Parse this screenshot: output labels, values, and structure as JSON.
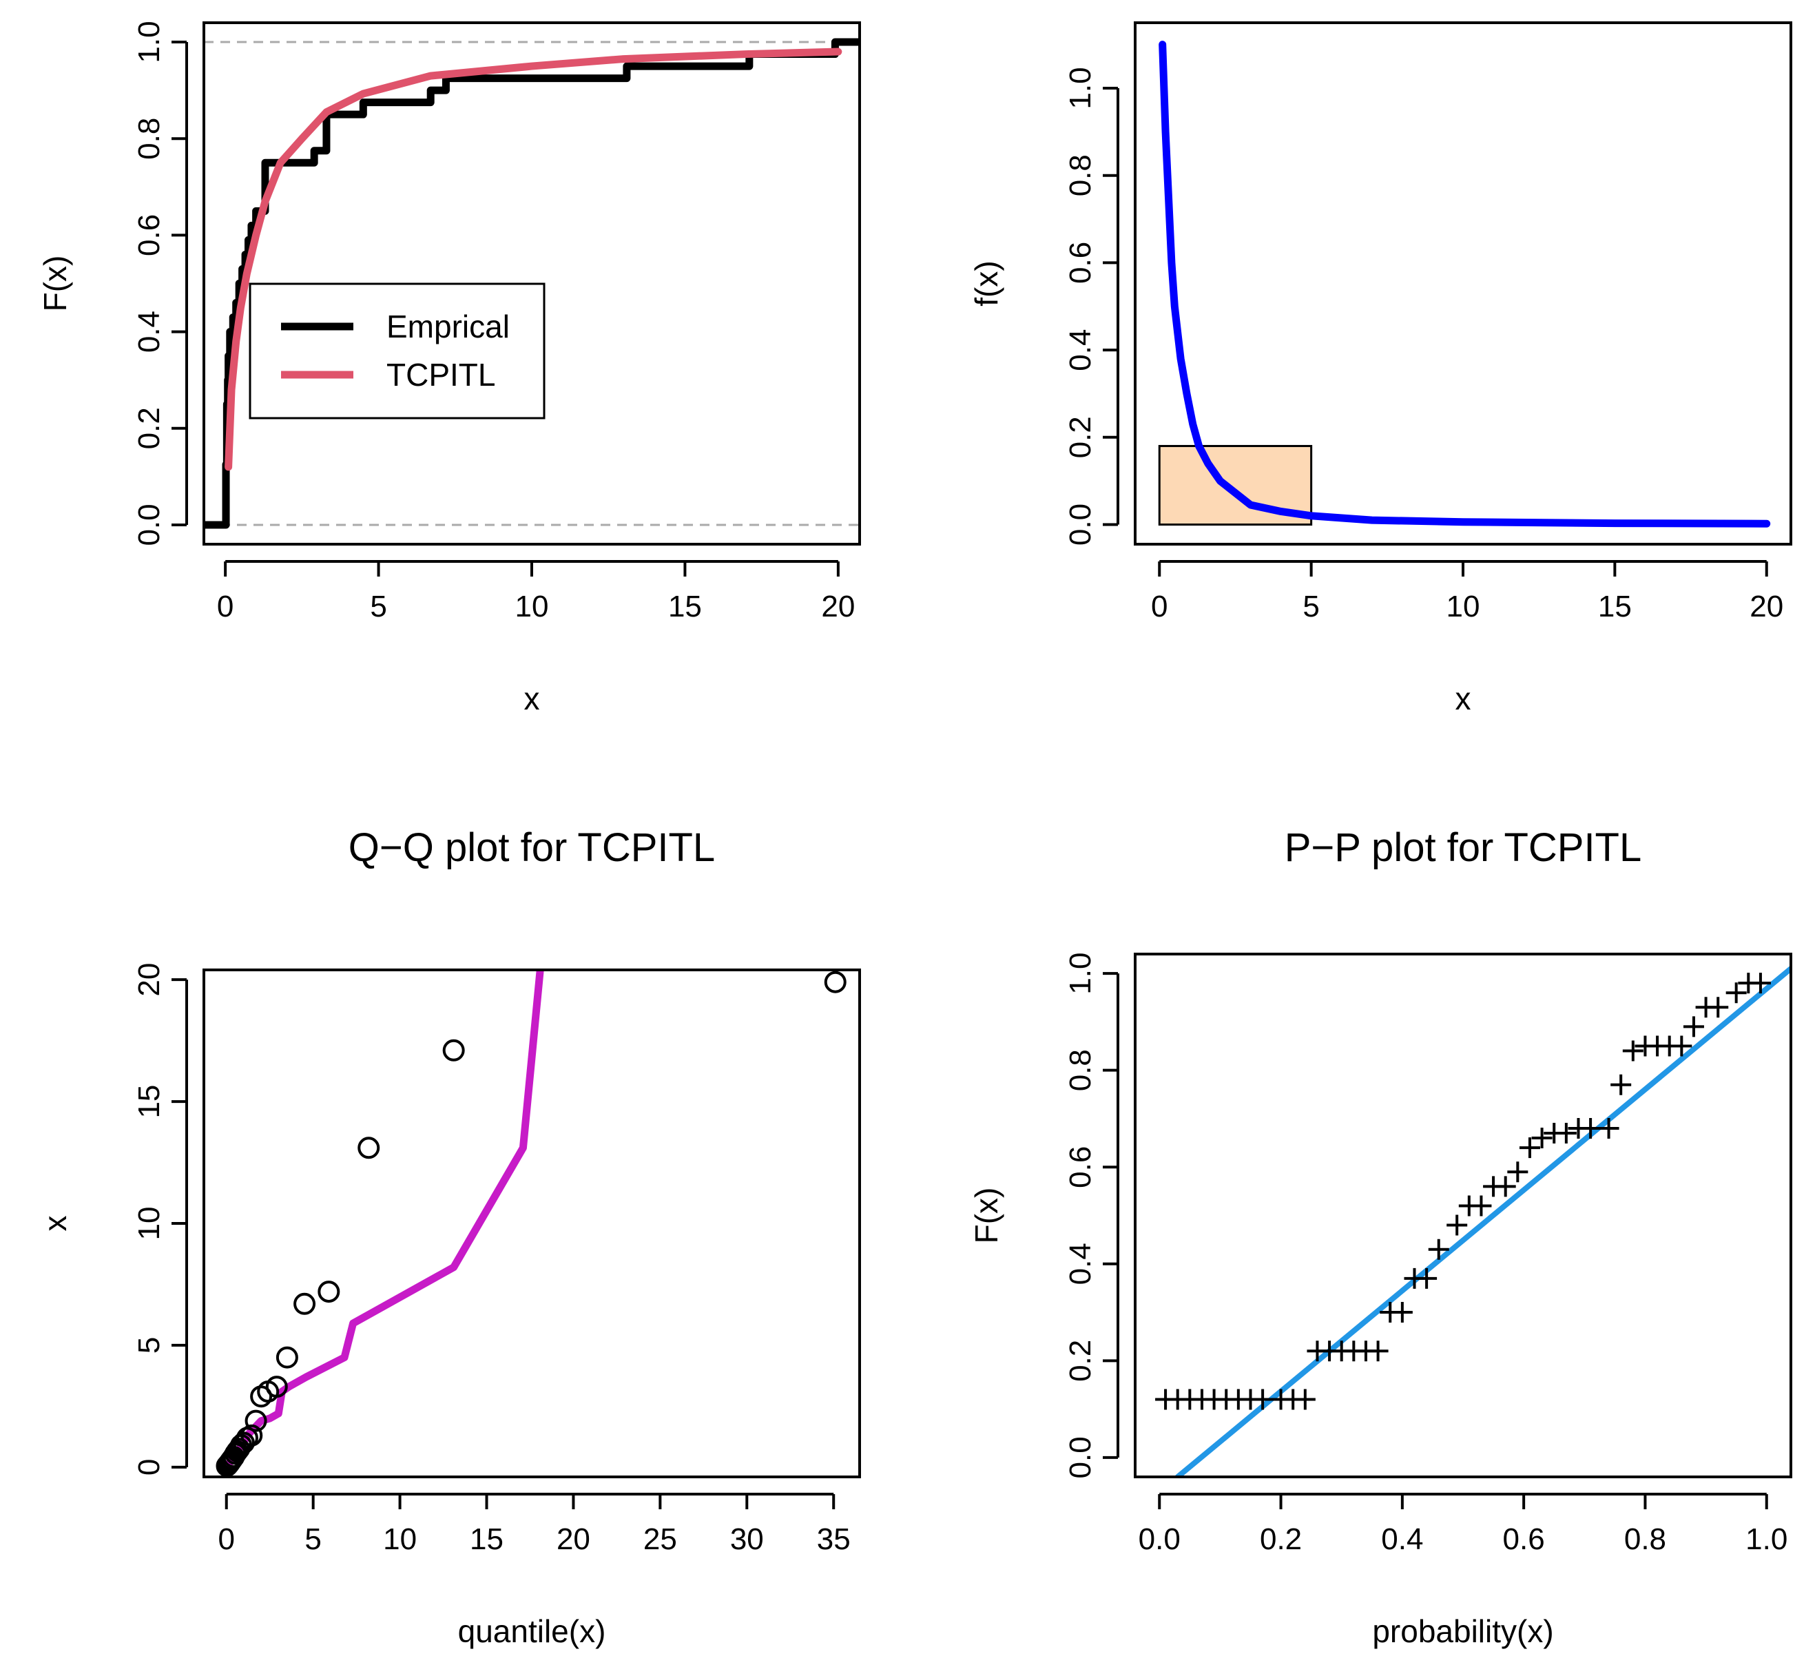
{
  "chart_data": [
    {
      "type": "line",
      "panel": "cdf",
      "title": "",
      "xlabel": "x",
      "ylabel": "F(x)",
      "xlim": [
        -0.7,
        20.7
      ],
      "ylim": [
        -0.04,
        1.04
      ],
      "xticks": [
        0,
        5,
        10,
        15,
        20
      ],
      "yticks": [
        0.0,
        0.2,
        0.4,
        0.6,
        0.8,
        1.0
      ],
      "xtick_labels": [
        "0",
        "5",
        "10",
        "15",
        "20"
      ],
      "ytick_labels": [
        "0.0",
        "0.2",
        "0.4",
        "0.6",
        "0.8",
        "1.0"
      ],
      "reference_lines_y": [
        0,
        1
      ],
      "legend": {
        "placement": "center-left",
        "entries": [
          {
            "label": "Emprical",
            "color": "#000000"
          },
          {
            "label": "TCPITL",
            "color": "#DF536B"
          }
        ]
      },
      "series": [
        {
          "name": "Emprical",
          "style": "step",
          "color": "#000000",
          "x": [
            -0.7,
            0.02,
            0.05,
            0.08,
            0.1,
            0.15,
            0.25,
            0.35,
            0.45,
            0.55,
            0.65,
            0.75,
            0.85,
            1.0,
            1.3,
            2.9,
            3.3,
            4.5,
            6.7,
            7.2,
            13.1,
            17.1,
            19.9,
            20.7
          ],
          "y": [
            0,
            0.125,
            0.25,
            0.3,
            0.35,
            0.4,
            0.43,
            0.46,
            0.5,
            0.53,
            0.56,
            0.59,
            0.62,
            0.65,
            0.75,
            0.775,
            0.85,
            0.875,
            0.9,
            0.925,
            0.95,
            0.975,
            1.0,
            1.0
          ]
        },
        {
          "name": "TCPITL",
          "style": "line",
          "color": "#DF536B",
          "x": [
            0.1,
            0.2,
            0.35,
            0.5,
            0.7,
            1.0,
            1.3,
            1.8,
            2.5,
            3.3,
            4.5,
            6.7,
            10,
            13,
            17,
            20
          ],
          "y": [
            0.12,
            0.28,
            0.38,
            0.45,
            0.52,
            0.6,
            0.67,
            0.75,
            0.8,
            0.855,
            0.893,
            0.93,
            0.95,
            0.965,
            0.975,
            0.98
          ]
        }
      ]
    },
    {
      "type": "line",
      "panel": "density",
      "title": "",
      "xlabel": "x",
      "ylabel": "f(x)",
      "xlim": [
        -0.8,
        20.8
      ],
      "ylim": [
        -0.045,
        1.15
      ],
      "xticks": [
        0,
        5,
        10,
        15,
        20
      ],
      "yticks": [
        0.0,
        0.2,
        0.4,
        0.6,
        0.8,
        1.0
      ],
      "xtick_labels": [
        "0",
        "5",
        "10",
        "15",
        "20"
      ],
      "ytick_labels": [
        "0.0",
        "0.2",
        "0.4",
        "0.6",
        "0.8",
        "1.0"
      ],
      "histogram": [
        {
          "x0": 0,
          "x1": 5,
          "density": 0.18,
          "fill": "#FDD9B5"
        }
      ],
      "series": [
        {
          "name": "",
          "color": "#0000FF",
          "x": [
            0.1,
            0.2,
            0.3,
            0.4,
            0.5,
            0.7,
            0.9,
            1.1,
            1.3,
            1.6,
            2.0,
            3.0,
            4.0,
            5.0,
            7.0,
            10,
            15,
            20
          ],
          "y": [
            1.1,
            0.9,
            0.75,
            0.6,
            0.5,
            0.38,
            0.3,
            0.23,
            0.18,
            0.14,
            0.1,
            0.045,
            0.03,
            0.02,
            0.01,
            0.006,
            0.003,
            0.002
          ]
        }
      ]
    },
    {
      "type": "scatter",
      "panel": "qq",
      "title": "Q−Q plot for  TCPITL",
      "xlabel": "quantile(x)",
      "ylabel": "x",
      "xlim": [
        -1.3,
        36.5
      ],
      "ylim": [
        -0.4,
        20.4
      ],
      "xticks": [
        0,
        5,
        10,
        15,
        20,
        25,
        30,
        35
      ],
      "yticks": [
        0,
        5,
        10,
        15,
        20
      ],
      "xtick_labels": [
        "0",
        "5",
        "10",
        "15",
        "20",
        "25",
        "30",
        "35"
      ],
      "ytick_labels": [
        "0",
        "5",
        "10",
        "15",
        "20"
      ],
      "points": {
        "marker": "circle",
        "color": "#000000",
        "x": [
          0.03,
          0.07,
          0.12,
          0.18,
          0.25,
          0.33,
          0.42,
          0.52,
          0.62,
          0.73,
          0.85,
          1.0,
          1.2,
          1.45,
          1.7,
          2.0,
          2.4,
          2.9,
          3.5,
          4.5,
          5.9,
          8.2,
          13.1,
          35.1
        ],
        "y": [
          0.05,
          0.08,
          0.12,
          0.18,
          0.25,
          0.33,
          0.42,
          0.55,
          0.65,
          0.75,
          0.9,
          1.0,
          1.2,
          1.3,
          1.9,
          2.9,
          3.1,
          3.3,
          4.5,
          6.7,
          7.2,
          13.1,
          17.1,
          19.9
        ]
      },
      "series": [
        {
          "name": "",
          "color": "#C71BC7",
          "x": [
            0.05,
            0.3,
            0.6,
            0.9,
            1.2,
            1.6,
            2.0,
            2.5,
            3.0,
            3.2,
            3.6,
            4.6,
            6.8,
            7.3,
            13.1,
            17.1,
            18.1
          ],
          "y": [
            0.05,
            0.3,
            0.6,
            0.9,
            1.3,
            1.6,
            1.9,
            2.0,
            2.2,
            3.1,
            3.3,
            3.7,
            4.5,
            5.9,
            8.2,
            13.1,
            20.5
          ]
        }
      ]
    },
    {
      "type": "scatter",
      "panel": "pp",
      "title": "P−P plot for  TCPITL",
      "xlabel": "probability(x)",
      "ylabel": "F(x)",
      "xlim": [
        -0.04,
        1.04
      ],
      "ylim": [
        -0.04,
        1.04
      ],
      "xticks": [
        0.0,
        0.2,
        0.4,
        0.6,
        0.8,
        1.0
      ],
      "yticks": [
        0.0,
        0.2,
        0.4,
        0.6,
        0.8,
        1.0
      ],
      "xtick_labels": [
        "0.0",
        "0.2",
        "0.4",
        "0.6",
        "0.8",
        "1.0"
      ],
      "ytick_labels": [
        "0.0",
        "0.2",
        "0.4",
        "0.6",
        "0.8",
        "1.0"
      ],
      "points": {
        "marker": "plus",
        "color": "#000000",
        "x": [
          0.01,
          0.03,
          0.05,
          0.07,
          0.09,
          0.11,
          0.13,
          0.15,
          0.17,
          0.2,
          0.22,
          0.24,
          0.26,
          0.28,
          0.3,
          0.32,
          0.34,
          0.36,
          0.38,
          0.4,
          0.42,
          0.44,
          0.46,
          0.49,
          0.51,
          0.53,
          0.55,
          0.57,
          0.59,
          0.61,
          0.63,
          0.65,
          0.67,
          0.69,
          0.71,
          0.74,
          0.76,
          0.78,
          0.8,
          0.82,
          0.84,
          0.86,
          0.88,
          0.9,
          0.92,
          0.95,
          0.97,
          0.99
        ],
        "y": [
          0.12,
          0.12,
          0.12,
          0.12,
          0.12,
          0.12,
          0.12,
          0.12,
          0.12,
          0.12,
          0.12,
          0.12,
          0.22,
          0.22,
          0.22,
          0.22,
          0.22,
          0.22,
          0.3,
          0.3,
          0.37,
          0.37,
          0.43,
          0.48,
          0.52,
          0.52,
          0.56,
          0.56,
          0.59,
          0.64,
          0.66,
          0.67,
          0.67,
          0.68,
          0.68,
          0.68,
          0.77,
          0.84,
          0.85,
          0.85,
          0.85,
          0.85,
          0.89,
          0.93,
          0.93,
          0.96,
          0.98,
          0.98
        ]
      },
      "series": [
        {
          "name": "",
          "color": "#2297E6",
          "x": [
            0.03,
            1.04
          ],
          "y": [
            -0.04,
            1.01
          ]
        }
      ]
    }
  ]
}
